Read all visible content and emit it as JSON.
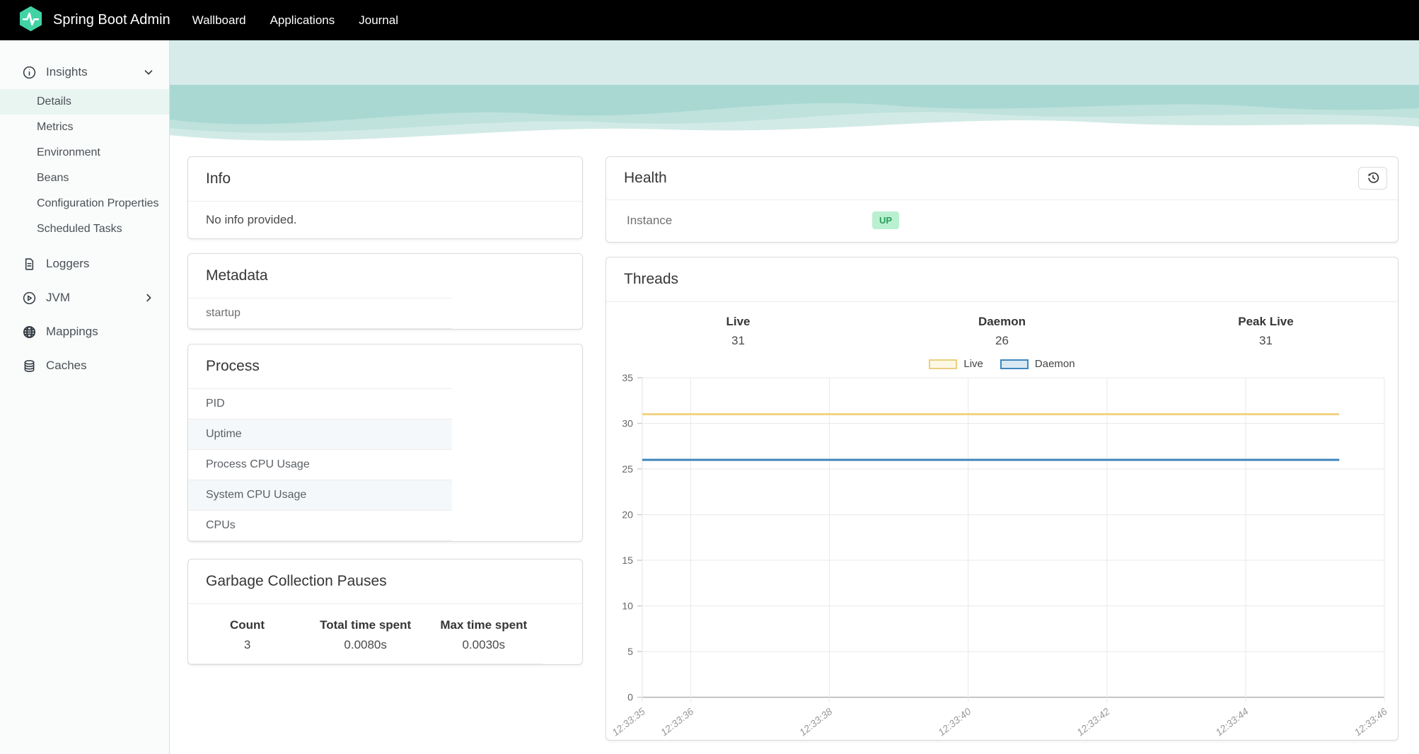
{
  "colors": {
    "brand": "#42d3a5",
    "navbar_bg": "#000000",
    "status_up_bg": "#b9f0d0",
    "status_up_text": "#2a9d5c",
    "hero_band_light": "#d7ecea",
    "hero_band_dark": "#a9d8d2"
  },
  "navbar": {
    "title": "Spring Boot Admin",
    "links": [
      {
        "label": "Wallboard"
      },
      {
        "label": "Applications"
      },
      {
        "label": "Journal"
      }
    ]
  },
  "sidebar": {
    "insights": {
      "label": "Insights"
    },
    "insights_children": [
      {
        "label": "Details",
        "active": true
      },
      {
        "label": "Metrics"
      },
      {
        "label": "Environment"
      },
      {
        "label": "Beans"
      },
      {
        "label": "Configuration Properties"
      },
      {
        "label": "Scheduled Tasks"
      }
    ],
    "items": [
      {
        "label": "Loggers"
      },
      {
        "label": "JVM"
      },
      {
        "label": "Mappings"
      },
      {
        "label": "Caches"
      }
    ]
  },
  "info_card": {
    "title": "Info",
    "body": "No info provided."
  },
  "metadata_card": {
    "title": "Metadata",
    "rows": [
      {
        "key": "startup"
      }
    ]
  },
  "process_card": {
    "title": "Process",
    "rows": [
      {
        "label": "PID"
      },
      {
        "label": "Uptime"
      },
      {
        "label": "Process CPU Usage"
      },
      {
        "label": "System CPU Usage"
      },
      {
        "label": "CPUs"
      }
    ]
  },
  "gc_card": {
    "title": "Garbage Collection Pauses",
    "columns": [
      {
        "header": "Count",
        "value": "3"
      },
      {
        "header": "Total time spent",
        "value": "0.0080s"
      },
      {
        "header": "Max time spent",
        "value": "0.0030s"
      }
    ]
  },
  "health_card": {
    "title": "Health",
    "rows": [
      {
        "label": "Instance",
        "status": "UP"
      }
    ]
  },
  "threads_card": {
    "title": "Threads",
    "stats": [
      {
        "label": "Live",
        "value": "31"
      },
      {
        "label": "Daemon",
        "value": "26"
      },
      {
        "label": "Peak Live",
        "value": "31"
      }
    ]
  },
  "chart_data": {
    "type": "line",
    "title": "Threads",
    "xlabel": "",
    "ylabel": "",
    "ylim": [
      0,
      35
    ],
    "ytick_step": 5,
    "grid": true,
    "legend_position": "top-center",
    "x_axis_seconds_range": [
      35.3,
      46
    ],
    "xticks": [
      {
        "t": 35,
        "label": "12:33:35"
      },
      {
        "t": 36,
        "label": "12:33:36"
      },
      {
        "t": 38,
        "label": "12:33:38"
      },
      {
        "t": 40,
        "label": "12:33:40"
      },
      {
        "t": 42,
        "label": "12:33:42"
      },
      {
        "t": 44,
        "label": "12:33:44"
      },
      {
        "t": 46,
        "label": "12:33:46"
      }
    ],
    "series": [
      {
        "name": "Live",
        "value": 31,
        "t_start": 35.3,
        "t_end": 45.35,
        "line_color": "#f0d383",
        "legend_fill": "#fdf8e3",
        "legend_border": "#e9cf7f"
      },
      {
        "name": "Daemon",
        "value": 26,
        "t_start": 35.3,
        "t_end": 45.35,
        "line_color": "#3f87be",
        "legend_fill": "#d9e9f4",
        "legend_border": "#3f87be"
      }
    ]
  }
}
